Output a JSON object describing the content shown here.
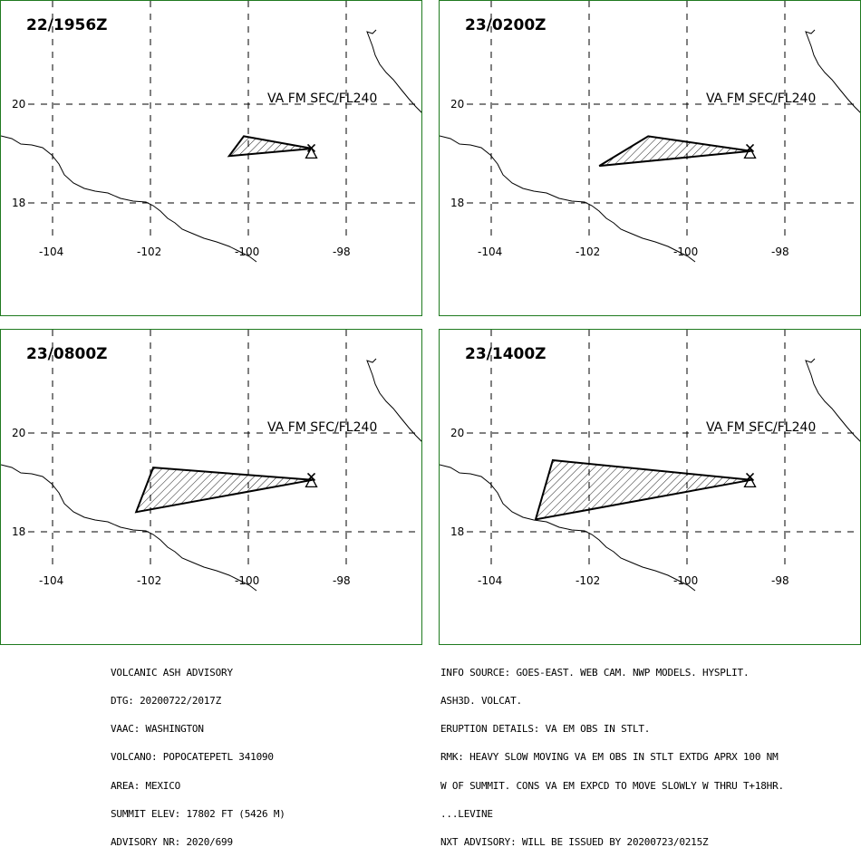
{
  "panels": [
    {
      "title": "22/1956Z",
      "va_label": "VA FM SFC/FL240",
      "polygon": [
        [
          -100.0,
          19.35
        ],
        [
          -98.6,
          19.1
        ],
        [
          -100.3,
          18.95
        ]
      ]
    },
    {
      "title": "23/0200Z",
      "va_label": "VA FM SFC/FL240",
      "polygon": [
        [
          -101.7,
          18.75
        ],
        [
          -100.7,
          19.35
        ],
        [
          -98.6,
          19.05
        ]
      ]
    },
    {
      "title": "23/0800Z",
      "va_label": "VA FM SFC/FL240",
      "polygon": [
        [
          -101.85,
          19.3
        ],
        [
          -98.6,
          19.05
        ],
        [
          -102.2,
          18.4
        ]
      ]
    },
    {
      "title": "23/1400Z",
      "va_label": "VA FM SFC/FL240",
      "polygon": [
        [
          -102.65,
          19.45
        ],
        [
          -98.6,
          19.05
        ],
        [
          -103.0,
          18.25
        ]
      ]
    }
  ],
  "map": {
    "lon_ticks": [
      "-104",
      "-102",
      "-100",
      "-98"
    ],
    "lat_ticks": [
      "20",
      "18"
    ],
    "volcano": {
      "lon": -98.62,
      "lat": 19.02
    }
  },
  "advisory_left": [
    "VOLCANIC ASH ADVISORY",
    "DTG: 20200722/2017Z",
    "VAAC: WASHINGTON",
    "VOLCANO: POPOCATEPETL 341090",
    "AREA: MEXICO",
    "SUMMIT ELEV: 17802 FT (5426 M)",
    "ADVISORY NR: 2020/699"
  ],
  "advisory_right": [
    "INFO SOURCE: GOES-EAST. WEB CAM. NWP MODELS. HYSPLIT.",
    "ASH3D. VOLCAT.",
    "ERUPTION DETAILS: VA EM OBS IN STLT.",
    "RMK: HEAVY SLOW MOVING VA EM OBS IN STLT EXTDG APRX 100 NM",
    "W OF SUMMIT. CONS VA EM EXPCD TO MOVE SLOWLY W THRU T+18HR.",
    "...LEVINE",
    "NXT ADVISORY: WILL BE ISSUED BY 20200723/0215Z"
  ],
  "colors": {
    "frame": "#1f7a1f",
    "lines": "#000000"
  }
}
